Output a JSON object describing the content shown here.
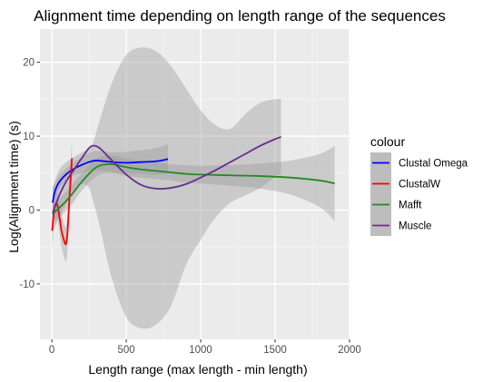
{
  "chart_data": {
    "type": "line",
    "title": "Alignment time depending on length range of the sequences",
    "xlabel": "Length range (max length - min length)",
    "ylabel": "Log(Alignment time) (s)",
    "xlim": [
      -80,
      2000
    ],
    "ylim": [
      -17.5,
      24.5
    ],
    "x_ticks": [
      0,
      500,
      1000,
      1500,
      2000
    ],
    "y_ticks": [
      -10,
      0,
      10,
      20
    ],
    "grid": true,
    "legend": {
      "title": "colour",
      "position": "right"
    },
    "series": [
      {
        "name": "Clustal Omega",
        "color": "#0000FF",
        "x": [
          5,
          20,
          50,
          100,
          150,
          200,
          250,
          300,
          400,
          500,
          600,
          700,
          780
        ],
        "y": [
          1.0,
          2.5,
          3.8,
          4.9,
          5.6,
          6.1,
          6.5,
          6.7,
          6.5,
          6.4,
          6.5,
          6.6,
          6.9
        ],
        "ci_upper": [
          3.0,
          3.6,
          4.7,
          5.7,
          6.5,
          7.2,
          7.7,
          8.0,
          7.8,
          7.9,
          8.1,
          8.4,
          8.9
        ],
        "ci_lower": [
          -1.0,
          1.4,
          2.9,
          4.1,
          4.7,
          5.0,
          5.3,
          5.4,
          5.2,
          4.9,
          4.9,
          4.8,
          4.9
        ]
      },
      {
        "name": "ClustalW",
        "color": "#FF0000",
        "x": [
          2,
          10,
          20,
          35,
          50,
          65,
          80,
          95,
          105,
          115,
          125,
          135
        ],
        "y": [
          -2.8,
          -1.0,
          0.5,
          0.8,
          -0.8,
          -2.8,
          -4.0,
          -4.6,
          -3.0,
          0.5,
          4.0,
          7.0
        ],
        "ci_upper": [
          0.0,
          1.2,
          2.2,
          2.4,
          1.2,
          -0.6,
          -1.8,
          -2.2,
          -0.6,
          2.8,
          6.4,
          9.5
        ],
        "ci_lower": [
          -5.6,
          -3.2,
          -1.2,
          -0.8,
          -2.8,
          -5.0,
          -6.2,
          -7.0,
          -5.4,
          -1.8,
          1.6,
          4.5
        ]
      },
      {
        "name": "Mafft",
        "color": "#228B22",
        "x": [
          5,
          50,
          100,
          150,
          200,
          300,
          400,
          500,
          600,
          700,
          800,
          900,
          1000,
          1200,
          1400,
          1600,
          1800,
          1900
        ],
        "y": [
          -0.5,
          0.3,
          1.3,
          2.5,
          3.8,
          5.8,
          6.2,
          5.8,
          5.5,
          5.3,
          5.1,
          4.9,
          4.8,
          4.7,
          4.6,
          4.4,
          4.0,
          3.6
        ],
        "ci_upper": [
          1.0,
          1.6,
          2.6,
          3.8,
          5.0,
          7.0,
          7.4,
          7.0,
          6.6,
          6.4,
          6.2,
          6.1,
          6.0,
          6.1,
          6.3,
          6.7,
          7.6,
          8.7
        ],
        "ci_lower": [
          -2.0,
          -1.0,
          0.0,
          1.2,
          2.6,
          4.6,
          5.0,
          4.6,
          4.4,
          4.2,
          4.0,
          3.7,
          3.6,
          3.3,
          2.9,
          2.1,
          0.4,
          -1.5
        ]
      },
      {
        "name": "Muscle",
        "color": "#6A2C91",
        "x": [
          5,
          50,
          100,
          150,
          200,
          250,
          280,
          320,
          400,
          500,
          600,
          700,
          800,
          900,
          1000,
          1100,
          1200,
          1300,
          1400,
          1500,
          1540
        ],
        "y": [
          -0.5,
          2.0,
          4.0,
          5.5,
          7.0,
          8.4,
          8.7,
          8.4,
          6.8,
          4.8,
          3.4,
          2.9,
          3.0,
          3.5,
          4.4,
          5.4,
          6.5,
          7.6,
          8.7,
          9.6,
          9.9
        ],
        "ci_upper": [
          3.0,
          5.5,
          6.5,
          7.2,
          7.8,
          8.3,
          9.3,
          12.0,
          17.0,
          21.0,
          22.0,
          21.5,
          19.5,
          16.5,
          13.5,
          11.5,
          11.0,
          13.0,
          14.5,
          15.0,
          15.0
        ],
        "ci_lower": [
          -3.0,
          -1.0,
          1.0,
          2.5,
          3.5,
          3.0,
          1.0,
          -2.0,
          -9.0,
          -14.5,
          -16.0,
          -15.5,
          -13.0,
          -7.5,
          -4.0,
          -1.0,
          1.0,
          2.0,
          3.0,
          4.5,
          4.8
        ]
      }
    ]
  }
}
